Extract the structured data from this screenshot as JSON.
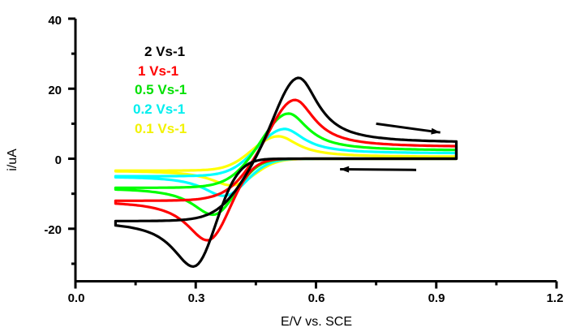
{
  "chart_data": {
    "type": "line",
    "title": "",
    "xlabel": "E/V vs. SCE",
    "ylabel": "i/uA",
    "xlim": [
      0.0,
      1.2
    ],
    "ylim": [
      -35,
      40
    ],
    "xticks": [
      0.0,
      0.3,
      0.6,
      0.9,
      1.2
    ],
    "xtick_labels": [
      "0.0",
      "0.3",
      "0.6",
      "0.9",
      "1.2"
    ],
    "yticks": [
      -20,
      0,
      20,
      40
    ],
    "ytick_labels": [
      "-20",
      "0",
      "20",
      "40"
    ],
    "yminor_ticks": [
      -30,
      -10,
      10,
      30
    ],
    "xminor_ticks": [
      0.15,
      0.45,
      0.75,
      1.05
    ],
    "grid": false,
    "legend_placement": "top-left (inside plot, text-only colored labels)",
    "scan_range": [
      0.1,
      0.95
    ],
    "series": [
      {
        "name": "2 Vs-1",
        "color": "#000000",
        "anodic_peak": {
          "E": 0.557,
          "i": 23.1
        },
        "cathodic_peak": {
          "E": 0.294,
          "i": -30.8
        },
        "i_at_start": -17.8,
        "i_at_vertex": 4.5
      },
      {
        "name": "1 Vs-1",
        "color": "#FF0000",
        "anodic_peak": {
          "E": 0.548,
          "i": 16.8
        },
        "cathodic_peak": {
          "E": 0.329,
          "i": -23.3
        },
        "i_at_start": -12.0,
        "i_at_vertex": 3.3
      },
      {
        "name": "0.5 Vs-1",
        "color": "#00FF00",
        "anodic_peak": {
          "E": 0.532,
          "i": 12.9
        },
        "cathodic_peak": {
          "E": 0.343,
          "i": -16.0
        },
        "i_at_start": -8.3,
        "i_at_vertex": 2.3
      },
      {
        "name": "0.2 Vs-1",
        "color": "#00FFFF",
        "anodic_peak": {
          "E": 0.522,
          "i": 8.5
        },
        "cathodic_peak": {
          "E": 0.37,
          "i": -10.6
        },
        "i_at_start": -5.0,
        "i_at_vertex": 1.5
      },
      {
        "name": "0.1 Vs-1",
        "color": "#FFFF00",
        "anodic_peak": {
          "E": 0.507,
          "i": 6.4
        },
        "cathodic_peak": {
          "E": 0.389,
          "i": -7.6
        },
        "i_at_start": -3.4,
        "i_at_vertex": 0.5
      }
    ],
    "annotations": [
      {
        "type": "arrow",
        "direction": "right",
        "meaning": "anodic (forward) scan",
        "from": {
          "E": 0.75,
          "i": 10.0
        },
        "to": {
          "E": 0.91,
          "i": 7.5
        }
      },
      {
        "type": "arrow",
        "direction": "left",
        "meaning": "cathodic (reverse) scan",
        "from": {
          "E": 0.85,
          "i": -3.2
        },
        "to": {
          "E": 0.66,
          "i": -3.0
        }
      }
    ]
  }
}
